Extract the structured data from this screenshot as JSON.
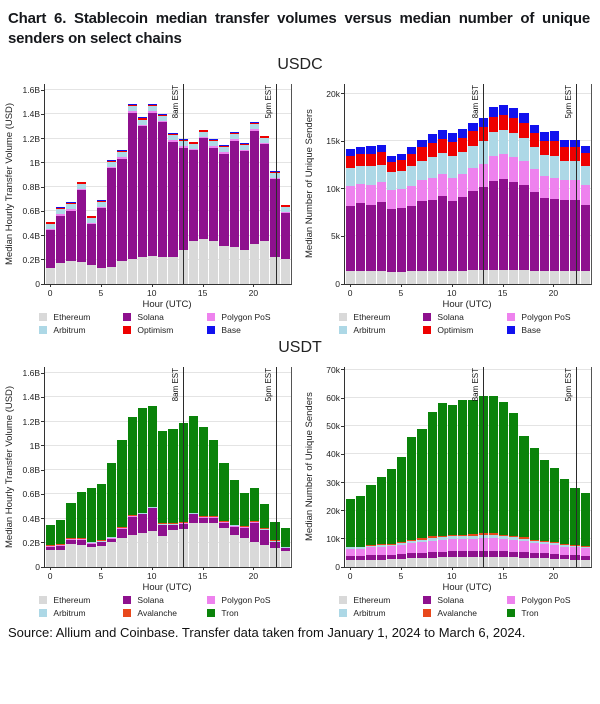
{
  "title": "Chart 6. Stablecoin median transfer volumes versus median number of unique senders on select chains",
  "source": "Source: Allium and Coinbase. Transfer data taken from January 1, 2024 to March 6, 2024.",
  "colors": {
    "Ethereum": "#d9d9d9",
    "Solana": "#8e108e",
    "Polygon PoS": "#ee82ee",
    "Arbitrum": "#add8e6",
    "Optimism": "#ee0000",
    "Base": "#1111ee",
    "Avalanche": "#e8481c",
    "Tron": "#0a830a"
  },
  "chart_data": [
    {
      "id": "usdc-volume",
      "group": "USDC",
      "type": "bar",
      "stacked": true,
      "xlabel": "Hour (UTC)",
      "ylabel": "Median Hourly Transfer Volume (USD)",
      "x": [
        0,
        1,
        2,
        3,
        4,
        5,
        6,
        7,
        8,
        9,
        10,
        11,
        12,
        13,
        14,
        15,
        16,
        17,
        18,
        19,
        20,
        21,
        22,
        23
      ],
      "xticks": [
        0,
        5,
        10,
        15,
        20
      ],
      "ymax": 1.65,
      "yticks": [
        {
          "v": 0,
          "label": "0"
        },
        {
          "v": 0.2,
          "label": "0.2B"
        },
        {
          "v": 0.4,
          "label": "0.4B"
        },
        {
          "v": 0.6,
          "label": "0.6B"
        },
        {
          "v": 0.8,
          "label": "0.8B"
        },
        {
          "v": 1.0,
          "label": "1B"
        },
        {
          "v": 1.2,
          "label": "1.2B"
        },
        {
          "v": 1.4,
          "label": "1.4B"
        },
        {
          "v": 1.6,
          "label": "1.6B"
        }
      ],
      "unit": "billions USD",
      "annotations": [
        {
          "x": 13,
          "label": "8am EST"
        },
        {
          "x": 22,
          "label": "5pm EST"
        }
      ],
      "series": [
        {
          "name": "Ethereum",
          "values": [
            0.13,
            0.17,
            0.19,
            0.18,
            0.15,
            0.13,
            0.14,
            0.19,
            0.2,
            0.22,
            0.23,
            0.22,
            0.22,
            0.28,
            0.35,
            0.37,
            0.35,
            0.31,
            0.3,
            0.28,
            0.33,
            0.35,
            0.22,
            0.2
          ]
        },
        {
          "name": "Solana",
          "values": [
            0.31,
            0.39,
            0.41,
            0.59,
            0.34,
            0.49,
            0.81,
            0.84,
            1.21,
            1.08,
            1.18,
            1.11,
            0.95,
            0.84,
            0.75,
            0.83,
            0.77,
            0.76,
            0.88,
            0.81,
            0.93,
            0.8,
            0.64,
            0.38
          ]
        },
        {
          "name": "Polygon PoS",
          "values": [
            0.012,
            0.012,
            0.012,
            0.012,
            0.012,
            0.012,
            0.012,
            0.012,
            0.012,
            0.012,
            0.012,
            0.012,
            0.012,
            0.012,
            0.012,
            0.012,
            0.012,
            0.012,
            0.012,
            0.012,
            0.012,
            0.012,
            0.012,
            0.012
          ]
        },
        {
          "name": "Arbitrum",
          "values": [
            0.042,
            0.042,
            0.042,
            0.042,
            0.042,
            0.042,
            0.042,
            0.042,
            0.042,
            0.042,
            0.042,
            0.042,
            0.042,
            0.042,
            0.042,
            0.042,
            0.042,
            0.042,
            0.042,
            0.042,
            0.042,
            0.042,
            0.042,
            0.042
          ]
        },
        {
          "name": "Optimism",
          "values": [
            0.011,
            0.011,
            0.011,
            0.011,
            0.011,
            0.011,
            0.011,
            0.011,
            0.011,
            0.011,
            0.011,
            0.011,
            0.011,
            0.011,
            0.011,
            0.011,
            0.011,
            0.011,
            0.011,
            0.011,
            0.011,
            0.011,
            0.011,
            0.011
          ]
        },
        {
          "name": "Base",
          "values": [
            0.006,
            0.006,
            0.006,
            0.006,
            0.006,
            0.006,
            0.006,
            0.006,
            0.006,
            0.006,
            0.006,
            0.006,
            0.006,
            0.006,
            0.006,
            0.006,
            0.006,
            0.006,
            0.006,
            0.006,
            0.006,
            0.006,
            0.006,
            0.006
          ]
        }
      ]
    },
    {
      "id": "usdc-senders",
      "group": "USDC",
      "type": "bar",
      "stacked": true,
      "xlabel": "Hour (UTC)",
      "ylabel": "Median Number of Unique Senders",
      "x": [
        0,
        1,
        2,
        3,
        4,
        5,
        6,
        7,
        8,
        9,
        10,
        11,
        12,
        13,
        14,
        15,
        16,
        17,
        18,
        19,
        20,
        21,
        22,
        23
      ],
      "xticks": [
        0,
        5,
        10,
        15,
        20
      ],
      "ymax": 21,
      "yticks": [
        {
          "v": 0,
          "label": "0"
        },
        {
          "v": 5,
          "label": "5k"
        },
        {
          "v": 10,
          "label": "10k"
        },
        {
          "v": 15,
          "label": "15k"
        },
        {
          "v": 20,
          "label": "20k"
        }
      ],
      "unit": "thousands of senders",
      "annotations": [
        {
          "x": 13,
          "label": "8am EST"
        },
        {
          "x": 22,
          "label": "5pm EST"
        }
      ],
      "series": [
        {
          "name": "Ethereum",
          "values": [
            1.3,
            1.3,
            1.3,
            1.3,
            1.2,
            1.2,
            1.3,
            1.3,
            1.3,
            1.3,
            1.3,
            1.3,
            1.4,
            1.4,
            1.4,
            1.4,
            1.4,
            1.4,
            1.3,
            1.3,
            1.3,
            1.3,
            1.3,
            1.3
          ]
        },
        {
          "name": "Solana",
          "values": [
            6.9,
            7.2,
            7.0,
            7.3,
            6.6,
            6.7,
            6.9,
            7.4,
            7.5,
            7.9,
            7.4,
            7.8,
            8.3,
            8.7,
            9.4,
            9.6,
            9.3,
            9.0,
            8.3,
            7.7,
            7.6,
            7.5,
            7.5,
            7.0
          ]
        },
        {
          "name": "Polygon PoS",
          "values": [
            2.0,
            2.0,
            2.1,
            2.1,
            2.0,
            2.0,
            2.1,
            2.2,
            2.3,
            2.3,
            2.4,
            2.4,
            2.4,
            2.5,
            2.6,
            2.6,
            2.6,
            2.5,
            2.4,
            2.3,
            2.2,
            2.1,
            2.1,
            2.1
          ]
        },
        {
          "name": "Arbitrum",
          "values": [
            1.9,
            1.8,
            1.9,
            1.8,
            1.9,
            1.9,
            2.0,
            2.0,
            2.2,
            2.2,
            2.3,
            2.3,
            2.4,
            2.4,
            2.5,
            2.5,
            2.5,
            2.4,
            2.3,
            2.2,
            2.3,
            2.0,
            2.0,
            2.0
          ]
        },
        {
          "name": "Optimism",
          "values": [
            1.3,
            1.3,
            1.3,
            1.3,
            1.1,
            1.2,
            1.3,
            1.4,
            1.5,
            1.5,
            1.5,
            1.5,
            1.5,
            1.5,
            1.6,
            1.6,
            1.6,
            1.6,
            1.5,
            1.5,
            1.6,
            1.4,
            1.4,
            1.3
          ]
        },
        {
          "name": "Base",
          "values": [
            0.7,
            0.7,
            0.8,
            0.8,
            0.6,
            0.6,
            0.7,
            0.8,
            0.9,
            0.9,
            0.9,
            0.9,
            0.9,
            0.9,
            1.0,
            1.1,
            1.0,
            1.0,
            0.9,
            0.9,
            1.0,
            0.8,
            0.8,
            0.7
          ]
        }
      ]
    },
    {
      "id": "usdt-volume",
      "group": "USDT",
      "type": "bar",
      "stacked": true,
      "xlabel": "Hour (UTC)",
      "ylabel": "Median Hourly Transfer Volume (USD)",
      "x": [
        0,
        1,
        2,
        3,
        4,
        5,
        6,
        7,
        8,
        9,
        10,
        11,
        12,
        13,
        14,
        15,
        16,
        17,
        18,
        19,
        20,
        21,
        22,
        23
      ],
      "xticks": [
        0,
        5,
        10,
        15,
        20
      ],
      "ymax": 1.65,
      "yticks": [
        {
          "v": 0,
          "label": "0"
        },
        {
          "v": 0.2,
          "label": "0.2B"
        },
        {
          "v": 0.4,
          "label": "0.4B"
        },
        {
          "v": 0.6,
          "label": "0.6B"
        },
        {
          "v": 0.8,
          "label": "0.8B"
        },
        {
          "v": 1.0,
          "label": "1B"
        },
        {
          "v": 1.2,
          "label": "1.2B"
        },
        {
          "v": 1.4,
          "label": "1.4B"
        },
        {
          "v": 1.6,
          "label": "1.6B"
        }
      ],
      "unit": "billions USD",
      "annotations": [
        {
          "x": 13,
          "label": "8am EST"
        },
        {
          "x": 22,
          "label": "5pm EST"
        }
      ],
      "series": [
        {
          "name": "Ethereum",
          "values": [
            0.14,
            0.14,
            0.19,
            0.18,
            0.16,
            0.17,
            0.2,
            0.24,
            0.26,
            0.28,
            0.29,
            0.25,
            0.3,
            0.31,
            0.36,
            0.36,
            0.36,
            0.32,
            0.26,
            0.24,
            0.2,
            0.18,
            0.15,
            0.13
          ]
        },
        {
          "name": "Solana",
          "values": [
            0.02,
            0.03,
            0.03,
            0.04,
            0.03,
            0.03,
            0.03,
            0.07,
            0.15,
            0.15,
            0.19,
            0.09,
            0.04,
            0.04,
            0.07,
            0.04,
            0.04,
            0.04,
            0.07,
            0.08,
            0.16,
            0.12,
            0.05,
            0.02
          ]
        },
        {
          "name": "Polygon PoS",
          "values": [
            0.006,
            0.006,
            0.006,
            0.006,
            0.006,
            0.006,
            0.006,
            0.006,
            0.006,
            0.006,
            0.006,
            0.006,
            0.006,
            0.006,
            0.006,
            0.006,
            0.006,
            0.006,
            0.006,
            0.006,
            0.006,
            0.006,
            0.006,
            0.006
          ]
        },
        {
          "name": "Arbitrum",
          "values": [
            0.005,
            0.005,
            0.005,
            0.005,
            0.005,
            0.005,
            0.005,
            0.005,
            0.005,
            0.005,
            0.005,
            0.005,
            0.005,
            0.005,
            0.005,
            0.005,
            0.005,
            0.005,
            0.005,
            0.005,
            0.005,
            0.005,
            0.005,
            0.005
          ]
        },
        {
          "name": "Avalanche",
          "values": [
            0.005,
            0.005,
            0.005,
            0.005,
            0.005,
            0.005,
            0.005,
            0.005,
            0.005,
            0.005,
            0.005,
            0.005,
            0.005,
            0.005,
            0.005,
            0.005,
            0.005,
            0.005,
            0.005,
            0.005,
            0.005,
            0.005,
            0.005,
            0.005
          ]
        },
        {
          "name": "Tron",
          "values": [
            0.17,
            0.2,
            0.29,
            0.38,
            0.44,
            0.47,
            0.61,
            0.72,
            0.81,
            0.86,
            0.83,
            0.76,
            0.78,
            0.82,
            0.8,
            0.74,
            0.63,
            0.48,
            0.37,
            0.27,
            0.27,
            0.2,
            0.15,
            0.15
          ]
        }
      ]
    },
    {
      "id": "usdt-senders",
      "group": "USDT",
      "type": "bar",
      "stacked": true,
      "xlabel": "Hour (UTC)",
      "ylabel": "Median Number of Unique Senders",
      "x": [
        0,
        1,
        2,
        3,
        4,
        5,
        6,
        7,
        8,
        9,
        10,
        11,
        12,
        13,
        14,
        15,
        16,
        17,
        18,
        19,
        20,
        21,
        22,
        23
      ],
      "xticks": [
        0,
        5,
        10,
        15,
        20
      ],
      "ymax": 71,
      "yticks": [
        {
          "v": 0,
          "label": "0"
        },
        {
          "v": 10,
          "label": "10k"
        },
        {
          "v": 20,
          "label": "20k"
        },
        {
          "v": 30,
          "label": "30k"
        },
        {
          "v": 40,
          "label": "40k"
        },
        {
          "v": 50,
          "label": "50k"
        },
        {
          "v": 60,
          "label": "60k"
        },
        {
          "v": 70,
          "label": "70k"
        }
      ],
      "unit": "thousands of senders",
      "annotations": [
        {
          "x": 13,
          "label": "8am EST"
        },
        {
          "x": 22,
          "label": "5pm EST"
        }
      ],
      "series": [
        {
          "name": "Ethereum",
          "values": [
            2.2,
            2.2,
            2.4,
            2.5,
            2.6,
            2.7,
            2.9,
            3.0,
            3.2,
            3.3,
            3.4,
            3.4,
            3.5,
            3.5,
            3.5,
            3.4,
            3.3,
            3.2,
            3.0,
            2.9,
            2.8,
            2.6,
            2.5,
            2.4
          ]
        },
        {
          "name": "Solana",
          "values": [
            1.5,
            1.5,
            1.6,
            1.6,
            1.6,
            1.7,
            1.8,
            1.9,
            2.0,
            2.0,
            2.1,
            2.1,
            2.1,
            2.2,
            2.2,
            2.1,
            2.0,
            2.0,
            1.9,
            1.8,
            1.7,
            1.6,
            1.6,
            1.5
          ]
        },
        {
          "name": "Polygon PoS",
          "values": [
            2.6,
            2.6,
            2.8,
            2.9,
            3.0,
            3.2,
            3.6,
            3.8,
            4.0,
            4.2,
            4.2,
            4.3,
            4.3,
            4.4,
            4.4,
            4.3,
            4.1,
            3.8,
            3.5,
            3.3,
            3.1,
            2.9,
            2.7,
            2.6
          ]
        },
        {
          "name": "Arbitrum",
          "values": [
            0.5,
            0.5,
            0.5,
            0.6,
            0.6,
            0.7,
            0.8,
            0.9,
            1.0,
            1.0,
            1.0,
            1.1,
            1.1,
            1.1,
            1.1,
            1.1,
            1.0,
            0.9,
            0.8,
            0.7,
            0.7,
            0.6,
            0.6,
            0.5
          ]
        },
        {
          "name": "Avalanche",
          "values": [
            0.3,
            0.3,
            0.3,
            0.3,
            0.4,
            0.4,
            0.4,
            0.5,
            0.5,
            0.5,
            0.5,
            0.5,
            0.5,
            0.6,
            0.6,
            0.5,
            0.5,
            0.5,
            0.4,
            0.4,
            0.4,
            0.3,
            0.3,
            0.3
          ]
        },
        {
          "name": "Tron",
          "values": [
            16.9,
            17.9,
            21.4,
            24.1,
            26.3,
            30.3,
            36.5,
            38.9,
            44.3,
            47.0,
            46.3,
            47.6,
            47.5,
            48.7,
            48.7,
            47.1,
            43.6,
            36.1,
            32.4,
            28.9,
            26.3,
            23.0,
            20.3,
            18.7
          ]
        }
      ]
    }
  ]
}
